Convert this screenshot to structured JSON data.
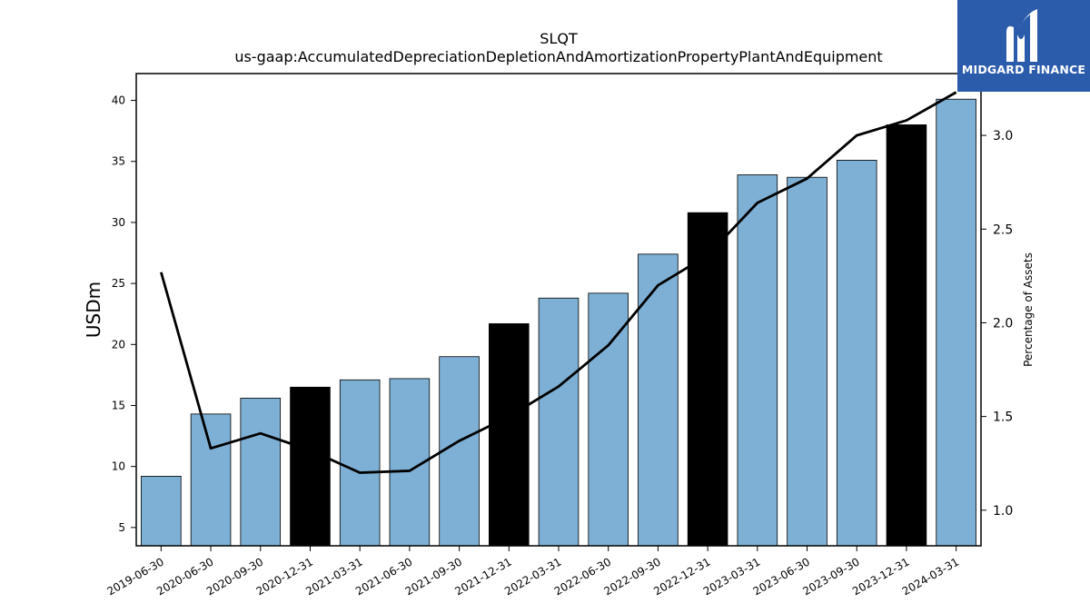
{
  "brand": {
    "name": "MIDGARD FINANCE",
    "logo_icon": "midgard-m-logo-icon",
    "bg_color": "#2b5bab"
  },
  "chart_data": {
    "type": "bar",
    "title": "SLQT",
    "subtitle": "us-gaap:AccumulatedDepreciationDepletionAndAmortizationPropertyPlantAndEquipment",
    "ylabel": "USDm",
    "y2label": "Percentage of Assets",
    "ylim": [
      3.5,
      42.2
    ],
    "y2lim": [
      0.81,
      3.33
    ],
    "yticks": [
      5,
      10,
      15,
      20,
      25,
      30,
      35,
      40
    ],
    "y2ticks": [
      1.0,
      1.5,
      2.0,
      2.5,
      3.0
    ],
    "categories": [
      "2019-06-30",
      "2020-06-30",
      "2020-09-30",
      "2020-12-31",
      "2021-03-31",
      "2021-06-30",
      "2021-09-30",
      "2021-12-31",
      "2022-03-31",
      "2022-06-30",
      "2022-09-30",
      "2022-12-31",
      "2023-03-31",
      "2023-06-30",
      "2023-09-30",
      "2023-12-31",
      "2024-03-31"
    ],
    "series": [
      {
        "type": "bar",
        "values": [
          9.2,
          14.3,
          15.6,
          16.5,
          17.1,
          17.2,
          19.0,
          21.7,
          23.8,
          24.2,
          27.4,
          30.8,
          33.9,
          33.7,
          35.1,
          38.0,
          40.1
        ],
        "highlight": [
          false,
          false,
          false,
          true,
          false,
          false,
          false,
          true,
          false,
          false,
          false,
          true,
          false,
          false,
          false,
          true,
          false
        ],
        "color": "#7eb0d5",
        "highlight_color": "#000000"
      },
      {
        "type": "line",
        "axis": "right",
        "values": [
          2.27,
          1.33,
          1.41,
          1.32,
          1.2,
          1.21,
          1.37,
          1.5,
          1.66,
          1.88,
          2.2,
          2.36,
          2.64,
          2.77,
          3.0,
          3.08,
          3.23
        ],
        "color": "#000000"
      }
    ]
  }
}
